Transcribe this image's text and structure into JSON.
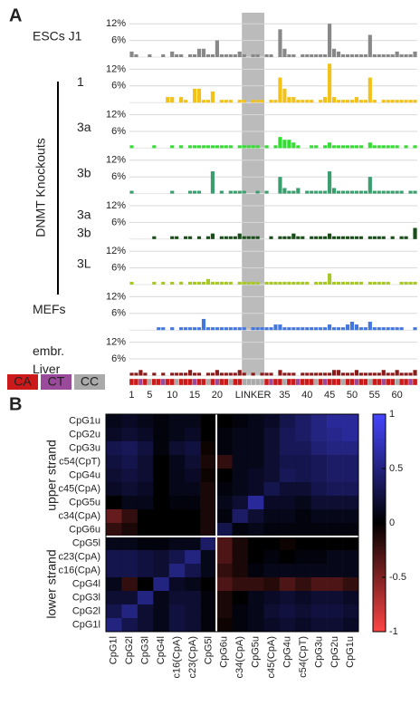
{
  "chart_data": [
    {
      "type": "bar",
      "panel_label": "A",
      "group_label": "DNMT Knockouts",
      "categories": [
        "1",
        null,
        null,
        null,
        "5",
        null,
        null,
        null,
        null,
        "10",
        null,
        null,
        null,
        null,
        "15",
        null,
        null,
        null,
        null,
        "20",
        null,
        null,
        null,
        null,
        null,
        null,
        null,
        "LINKER",
        null,
        null,
        null,
        null,
        null,
        null,
        "35",
        null,
        null,
        null,
        null,
        "40",
        null,
        null,
        null,
        null,
        "45",
        null,
        null,
        null,
        null,
        "50",
        null,
        null,
        null,
        null,
        "55",
        null,
        null,
        null,
        null,
        "60",
        null,
        null,
        null,
        null
      ],
      "ylim": [
        0,
        15
      ],
      "yticks": [
        {
          "value": 6,
          "label": "6%"
        },
        {
          "value": 12,
          "label": "12%"
        }
      ],
      "grid": true,
      "linker_band": [
        25,
        29
      ],
      "band_color": "#bbbbbb",
      "series": [
        {
          "name": [
            "ESCs J1"
          ],
          "color": "#888888",
          "values": [
            2,
            1,
            0,
            0,
            1,
            0,
            0,
            1,
            0,
            2,
            1,
            1,
            0,
            1,
            1,
            3,
            3,
            1,
            1,
            6,
            1,
            1,
            1,
            1,
            2,
            1,
            0,
            1,
            1,
            0,
            1,
            1,
            0,
            10,
            3,
            1,
            1,
            0,
            1,
            1,
            1,
            1,
            1,
            1,
            12,
            3,
            2,
            1,
            1,
            1,
            1,
            1,
            1,
            8,
            1,
            1,
            1,
            1,
            1,
            2,
            1,
            1,
            1,
            2
          ]
        },
        {
          "name": [
            "1"
          ],
          "color": "#f2c21b",
          "values": [
            0,
            0,
            0,
            0,
            0,
            0,
            0,
            0,
            2,
            2,
            0,
            2,
            1,
            0,
            5,
            5,
            1,
            1,
            4,
            0,
            1,
            1,
            1,
            0,
            1,
            1,
            0,
            1,
            1,
            1,
            0,
            1,
            1,
            9,
            5,
            2,
            2,
            1,
            1,
            1,
            1,
            0,
            1,
            2,
            14,
            2,
            1,
            1,
            1,
            1,
            2,
            1,
            1,
            9,
            1,
            0,
            1,
            1,
            1,
            1,
            1,
            1,
            1,
            1
          ]
        },
        {
          "name": [
            "3a"
          ],
          "color": "#33dd33",
          "values": [
            1,
            0,
            0,
            0,
            0,
            1,
            0,
            0,
            0,
            1,
            0,
            1,
            0,
            1,
            1,
            1,
            1,
            1,
            1,
            1,
            1,
            1,
            1,
            0,
            1,
            1,
            1,
            1,
            1,
            0,
            1,
            0,
            1,
            4,
            3,
            3,
            2,
            1,
            0,
            0,
            1,
            1,
            0,
            1,
            2,
            1,
            1,
            1,
            1,
            1,
            1,
            1,
            0,
            2,
            1,
            1,
            1,
            1,
            1,
            1,
            0,
            1,
            0,
            1
          ]
        },
        {
          "name": [
            "3b"
          ],
          "color": "#3a9e6e",
          "values": [
            1,
            0,
            0,
            0,
            0,
            0,
            0,
            0,
            0,
            1,
            0,
            0,
            0,
            1,
            1,
            1,
            0,
            0,
            8,
            0,
            1,
            0,
            1,
            1,
            1,
            1,
            0,
            0,
            1,
            0,
            1,
            0,
            0,
            6,
            2,
            1,
            1,
            2,
            0,
            1,
            1,
            1,
            1,
            1,
            8,
            2,
            1,
            1,
            1,
            1,
            1,
            1,
            1,
            6,
            1,
            1,
            1,
            1,
            1,
            1,
            1,
            0,
            1,
            1
          ]
        },
        {
          "name": [
            "3a",
            "3b"
          ],
          "color": "#1a4d1a",
          "values": [
            0,
            0,
            0,
            0,
            0,
            1,
            0,
            0,
            0,
            1,
            1,
            0,
            1,
            1,
            0,
            1,
            0,
            1,
            2,
            0,
            1,
            1,
            1,
            1,
            2,
            1,
            1,
            1,
            1,
            0,
            0,
            1,
            0,
            1,
            1,
            1,
            2,
            1,
            1,
            0,
            1,
            1,
            1,
            1,
            2,
            1,
            1,
            1,
            1,
            1,
            1,
            1,
            0,
            1,
            1,
            1,
            1,
            0,
            1,
            0,
            1,
            1,
            0,
            4
          ]
        },
        {
          "name": [
            "3L"
          ],
          "color": "#a8c82a",
          "values": [
            1,
            0,
            0,
            0,
            0,
            1,
            0,
            1,
            0,
            1,
            0,
            1,
            0,
            1,
            1,
            1,
            1,
            2,
            1,
            1,
            1,
            1,
            1,
            0,
            1,
            1,
            1,
            1,
            1,
            0,
            1,
            1,
            1,
            1,
            1,
            1,
            1,
            1,
            1,
            1,
            0,
            1,
            1,
            1,
            4,
            1,
            1,
            1,
            1,
            1,
            1,
            1,
            0,
            1,
            1,
            1,
            1,
            1,
            0,
            0,
            1,
            1,
            1,
            1
          ]
        },
        {
          "name": [
            "MEFs"
          ],
          "color": "#4477dd",
          "values": [
            0,
            0,
            0,
            0,
            0,
            0,
            1,
            1,
            0,
            1,
            0,
            1,
            1,
            1,
            1,
            1,
            4,
            1,
            1,
            1,
            1,
            1,
            1,
            1,
            1,
            1,
            0,
            1,
            1,
            1,
            1,
            1,
            2,
            2,
            1,
            1,
            1,
            1,
            1,
            1,
            1,
            1,
            1,
            1,
            2,
            1,
            1,
            1,
            2,
            3,
            2,
            1,
            1,
            3,
            1,
            1,
            1,
            1,
            1,
            1,
            1,
            0,
            0,
            1
          ]
        },
        {
          "name": [
            "embr.",
            "Liver"
          ],
          "color": "#8b1a1a",
          "values": [
            1,
            1,
            2,
            1,
            0,
            1,
            0,
            1,
            0,
            1,
            1,
            1,
            1,
            2,
            1,
            1,
            0,
            1,
            1,
            2,
            1,
            1,
            1,
            1,
            2,
            1,
            0,
            1,
            0,
            1,
            1,
            1,
            0,
            2,
            1,
            1,
            1,
            0,
            1,
            1,
            1,
            1,
            1,
            1,
            1,
            2,
            2,
            1,
            1,
            1,
            2,
            1,
            1,
            1,
            1,
            1,
            2,
            1,
            1,
            2,
            1,
            1,
            1,
            2
          ]
        }
      ],
      "context_legend": [
        {
          "label": "CA",
          "color": "#cc1a1a"
        },
        {
          "label": "CT",
          "color": "#9a4a9a"
        },
        {
          "label": "CC",
          "color": "#aaaaaa"
        }
      ],
      "contexts": [
        "CA",
        "CA",
        "CT",
        "CA",
        "CC",
        "CA",
        "CA",
        "CT",
        "CA",
        "CA",
        "CC",
        "CA",
        "CA",
        "CA",
        "CT",
        "CA",
        "CA",
        "CC",
        "CA",
        "CT",
        "CA",
        "CA",
        "CC",
        "CA",
        "CA",
        "CC",
        "CC",
        "CC",
        "CC",
        "CC",
        "CA",
        "CT",
        "CA",
        "CA",
        "CC",
        "CA",
        "CA",
        "CT",
        "CA",
        "CA",
        "CA",
        "CC",
        "CA",
        "CT",
        "CA",
        "CA",
        "CA",
        "CC",
        "CA",
        "CA",
        "CT",
        "CA",
        "CA",
        "CC",
        "CA",
        "CA",
        "CT",
        "CA",
        "CA",
        "CC",
        "CA",
        "CA",
        "CT",
        "CA"
      ]
    },
    {
      "type": "heatmap",
      "panel_label": "B",
      "rows": [
        "CpG1u",
        "CpG2u",
        "CpG3u",
        "c54(CpT)",
        "CpG4u",
        "c45(CpA)",
        "CpG5u",
        "c34(CpA)",
        "CpG6u",
        "CpG5l",
        "c23(CpA)",
        "c16(CpA)",
        "CpG4l",
        "CpG3l",
        "CpG2l",
        "CpG1l"
      ],
      "columns": [
        "CpG1l",
        "CpG2l",
        "CpG3l",
        "CpG4l",
        "c16(CpA)",
        "c23(CpA)",
        "CpG5l",
        "CpG6u",
        "c34(CpA)",
        "CpG5u",
        "c45(CpA)",
        "CpG4u",
        "c54(CpT)",
        "CpG3u",
        "CpG2u",
        "CpG1u"
      ],
      "groups": [
        {
          "label": "upper strand",
          "rows": [
            0,
            8
          ]
        },
        {
          "label": "lower strand",
          "rows": [
            9,
            15
          ]
        }
      ],
      "zlim": [
        -1,
        1
      ],
      "zticks": [
        -1,
        -0.5,
        0,
        0.5,
        1
      ],
      "colorscale": [
        "#ff4545",
        "#000000",
        "#4545ff"
      ],
      "values": [
        [
          0.1,
          0.15,
          0.1,
          0.05,
          0.1,
          0.1,
          0.0,
          0.0,
          0.05,
          0.1,
          0.15,
          0.3,
          0.4,
          0.5,
          0.6,
          0.6
        ],
        [
          0.15,
          0.2,
          0.15,
          0.05,
          0.1,
          0.15,
          0.0,
          0.05,
          0.1,
          0.1,
          0.2,
          0.35,
          0.4,
          0.5,
          0.55,
          0.6
        ],
        [
          0.3,
          0.35,
          0.25,
          0.05,
          0.2,
          0.25,
          -0.05,
          0.05,
          0.1,
          0.1,
          0.2,
          0.35,
          0.35,
          0.45,
          0.5,
          0.5
        ],
        [
          0.25,
          0.3,
          0.2,
          0.0,
          0.1,
          0.2,
          -0.1,
          -0.2,
          0.1,
          0.1,
          0.2,
          0.3,
          0.3,
          0.35,
          0.4,
          0.4
        ],
        [
          0.2,
          0.25,
          0.2,
          0.0,
          0.1,
          0.15,
          -0.05,
          0.0,
          0.1,
          0.15,
          0.2,
          0.35,
          0.3,
          0.35,
          0.4,
          0.4
        ],
        [
          0.15,
          0.2,
          0.15,
          0.0,
          0.1,
          0.1,
          -0.1,
          0.05,
          0.1,
          0.15,
          0.3,
          0.2,
          0.2,
          0.3,
          0.35,
          0.35
        ],
        [
          0.0,
          0.1,
          0.1,
          0.0,
          0.05,
          0.05,
          -0.1,
          0.1,
          0.2,
          0.6,
          0.15,
          0.15,
          0.1,
          0.2,
          0.2,
          0.2
        ],
        [
          -0.4,
          -0.2,
          0.0,
          0.0,
          0.0,
          0.0,
          -0.1,
          0.05,
          0.4,
          0.2,
          0.1,
          0.1,
          0.05,
          0.1,
          0.1,
          0.1
        ],
        [
          -0.2,
          -0.1,
          0.0,
          0.0,
          0.0,
          0.0,
          -0.1,
          0.3,
          0.05,
          0.1,
          0.05,
          0.05,
          0.05,
          0.05,
          0.05,
          0.05
        ],
        [
          0.1,
          0.1,
          0.05,
          0.05,
          0.1,
          0.1,
          0.4,
          -0.3,
          -0.1,
          0.0,
          0.0,
          -0.05,
          0.0,
          0.0,
          0.0,
          0.0
        ],
        [
          0.3,
          0.3,
          0.25,
          0.2,
          0.3,
          0.5,
          0.1,
          -0.3,
          -0.1,
          0.0,
          0.05,
          0.0,
          0.05,
          0.05,
          0.1,
          0.1
        ],
        [
          0.3,
          0.3,
          0.25,
          0.2,
          0.5,
          0.3,
          0.1,
          -0.2,
          -0.1,
          0.05,
          0.1,
          0.1,
          0.1,
          0.1,
          0.1,
          0.1
        ],
        [
          0.1,
          -0.2,
          0.0,
          0.5,
          0.15,
          0.1,
          0.0,
          -0.3,
          -0.2,
          -0.2,
          -0.15,
          -0.3,
          -0.2,
          -0.3,
          -0.3,
          -0.2
        ],
        [
          0.2,
          0.2,
          0.5,
          0.1,
          0.2,
          0.2,
          0.05,
          -0.1,
          0.0,
          0.1,
          0.15,
          0.2,
          0.15,
          0.2,
          0.2,
          0.15
        ],
        [
          0.3,
          0.5,
          0.2,
          0.1,
          0.25,
          0.2,
          0.05,
          -0.1,
          0.05,
          0.1,
          0.2,
          0.25,
          0.2,
          0.25,
          0.25,
          0.2
        ],
        [
          0.5,
          0.3,
          0.2,
          0.1,
          0.25,
          0.2,
          0.05,
          -0.05,
          0.05,
          0.1,
          0.15,
          0.2,
          0.15,
          0.2,
          0.2,
          0.15
        ]
      ]
    }
  ]
}
